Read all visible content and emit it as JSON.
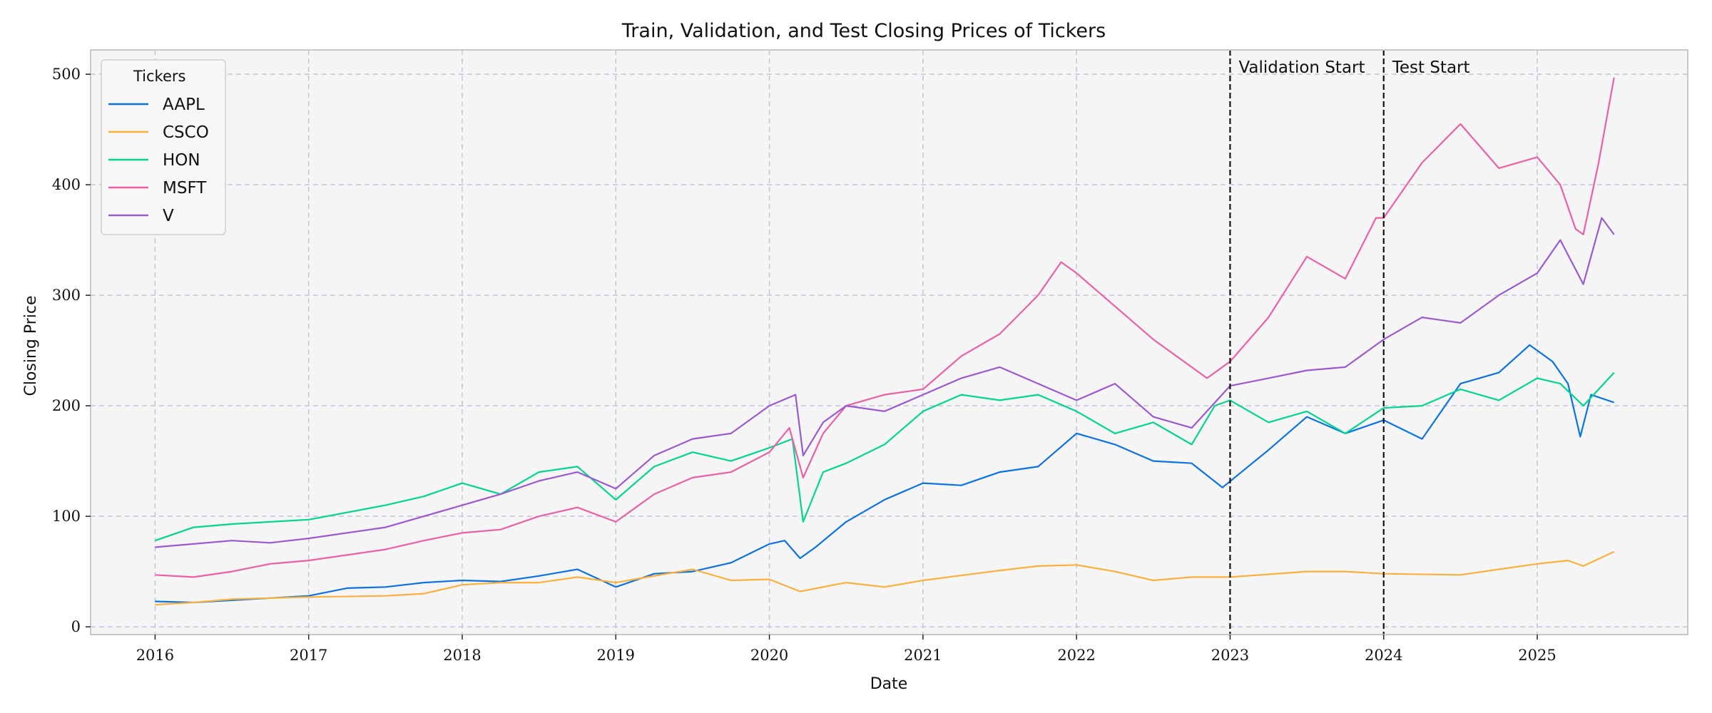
{
  "chart_data": {
    "type": "line",
    "title": "Train, Validation, and Test Closing Prices of Tickers",
    "xlabel": "Date",
    "ylabel": "Closing Price",
    "xlim": [
      2015.58,
      2025.98
    ],
    "ylim": [
      -7,
      522
    ],
    "x_ticks": [
      2016,
      2017,
      2018,
      2019,
      2020,
      2021,
      2022,
      2023,
      2024,
      2025
    ],
    "x_tick_labels": [
      "2016",
      "2017",
      "2018",
      "2019",
      "2020",
      "2021",
      "2022",
      "2023",
      "2024",
      "2025"
    ],
    "y_ticks": [
      0,
      100,
      200,
      300,
      400,
      500
    ],
    "y_tick_labels": [
      "0",
      "100",
      "200",
      "300",
      "400",
      "500"
    ],
    "grid": true,
    "legend": {
      "title": "Tickers",
      "placement": "top-left"
    },
    "annotations": [
      {
        "x": 2023.0,
        "label": "Validation Start"
      },
      {
        "x": 2024.0,
        "label": "Test Start"
      }
    ],
    "series": [
      {
        "name": "AAPL",
        "color": "#0b72e6",
        "points": [
          [
            2016.0,
            23
          ],
          [
            2016.25,
            22
          ],
          [
            2016.5,
            24
          ],
          [
            2016.75,
            26
          ],
          [
            2017.0,
            28
          ],
          [
            2017.25,
            35
          ],
          [
            2017.5,
            36
          ],
          [
            2017.75,
            40
          ],
          [
            2018.0,
            42
          ],
          [
            2018.25,
            41
          ],
          [
            2018.5,
            46
          ],
          [
            2018.75,
            52
          ],
          [
            2019.0,
            36
          ],
          [
            2019.25,
            48
          ],
          [
            2019.5,
            50
          ],
          [
            2019.75,
            58
          ],
          [
            2020.0,
            75
          ],
          [
            2020.1,
            78
          ],
          [
            2020.2,
            62
          ],
          [
            2020.3,
            72
          ],
          [
            2020.5,
            95
          ],
          [
            2020.75,
            115
          ],
          [
            2021.0,
            130
          ],
          [
            2021.25,
            128
          ],
          [
            2021.5,
            140
          ],
          [
            2021.75,
            145
          ],
          [
            2022.0,
            175
          ],
          [
            2022.25,
            165
          ],
          [
            2022.5,
            150
          ],
          [
            2022.75,
            148
          ],
          [
            2022.95,
            126
          ],
          [
            2023.25,
            160
          ],
          [
            2023.5,
            190
          ],
          [
            2023.75,
            175
          ],
          [
            2024.0,
            187
          ],
          [
            2024.25,
            170
          ],
          [
            2024.5,
            220
          ],
          [
            2024.75,
            230
          ],
          [
            2024.95,
            255
          ],
          [
            2025.1,
            240
          ],
          [
            2025.2,
            220
          ],
          [
            2025.28,
            172
          ],
          [
            2025.35,
            210
          ],
          [
            2025.5,
            203
          ]
        ]
      },
      {
        "name": "CSCO",
        "color": "#fbb03b",
        "points": [
          [
            2016.0,
            20
          ],
          [
            2016.25,
            22
          ],
          [
            2016.5,
            25
          ],
          [
            2016.75,
            26
          ],
          [
            2017.0,
            27
          ],
          [
            2017.5,
            28
          ],
          [
            2017.75,
            30
          ],
          [
            2018.0,
            38
          ],
          [
            2018.25,
            40
          ],
          [
            2018.5,
            40
          ],
          [
            2018.75,
            45
          ],
          [
            2019.0,
            40
          ],
          [
            2019.5,
            52
          ],
          [
            2019.75,
            42
          ],
          [
            2020.0,
            43
          ],
          [
            2020.2,
            32
          ],
          [
            2020.5,
            40
          ],
          [
            2020.75,
            36
          ],
          [
            2021.0,
            42
          ],
          [
            2021.5,
            51
          ],
          [
            2021.75,
            55
          ],
          [
            2022.0,
            56
          ],
          [
            2022.25,
            50
          ],
          [
            2022.5,
            42
          ],
          [
            2022.75,
            45
          ],
          [
            2023.0,
            45
          ],
          [
            2023.5,
            50
          ],
          [
            2023.75,
            50
          ],
          [
            2024.0,
            48
          ],
          [
            2024.5,
            47
          ],
          [
            2024.75,
            52
          ],
          [
            2025.0,
            57
          ],
          [
            2025.2,
            60
          ],
          [
            2025.3,
            55
          ],
          [
            2025.5,
            68
          ]
        ]
      },
      {
        "name": "HON",
        "color": "#00d68f",
        "points": [
          [
            2016.0,
            78
          ],
          [
            2016.25,
            90
          ],
          [
            2016.5,
            93
          ],
          [
            2016.75,
            95
          ],
          [
            2017.0,
            97
          ],
          [
            2017.5,
            110
          ],
          [
            2017.75,
            118
          ],
          [
            2018.0,
            130
          ],
          [
            2018.25,
            120
          ],
          [
            2018.5,
            140
          ],
          [
            2018.75,
            145
          ],
          [
            2019.0,
            115
          ],
          [
            2019.25,
            145
          ],
          [
            2019.5,
            158
          ],
          [
            2019.75,
            150
          ],
          [
            2020.0,
            162
          ],
          [
            2020.15,
            170
          ],
          [
            2020.22,
            95
          ],
          [
            2020.35,
            140
          ],
          [
            2020.5,
            148
          ],
          [
            2020.75,
            165
          ],
          [
            2021.0,
            195
          ],
          [
            2021.25,
            210
          ],
          [
            2021.5,
            205
          ],
          [
            2021.75,
            210
          ],
          [
            2022.0,
            195
          ],
          [
            2022.25,
            175
          ],
          [
            2022.5,
            185
          ],
          [
            2022.75,
            165
          ],
          [
            2022.9,
            200
          ],
          [
            2023.0,
            205
          ],
          [
            2023.25,
            185
          ],
          [
            2023.5,
            195
          ],
          [
            2023.75,
            175
          ],
          [
            2024.0,
            198
          ],
          [
            2024.25,
            200
          ],
          [
            2024.5,
            215
          ],
          [
            2024.75,
            205
          ],
          [
            2025.0,
            225
          ],
          [
            2025.15,
            220
          ],
          [
            2025.3,
            200
          ],
          [
            2025.5,
            230
          ]
        ]
      },
      {
        "name": "MSFT",
        "color": "#ec5fa5",
        "points": [
          [
            2016.0,
            47
          ],
          [
            2016.25,
            45
          ],
          [
            2016.5,
            50
          ],
          [
            2016.75,
            57
          ],
          [
            2017.0,
            60
          ],
          [
            2017.5,
            70
          ],
          [
            2017.75,
            78
          ],
          [
            2018.0,
            85
          ],
          [
            2018.25,
            88
          ],
          [
            2018.5,
            100
          ],
          [
            2018.75,
            108
          ],
          [
            2019.0,
            95
          ],
          [
            2019.25,
            120
          ],
          [
            2019.5,
            135
          ],
          [
            2019.75,
            140
          ],
          [
            2020.0,
            158
          ],
          [
            2020.13,
            180
          ],
          [
            2020.22,
            135
          ],
          [
            2020.35,
            175
          ],
          [
            2020.5,
            200
          ],
          [
            2020.75,
            210
          ],
          [
            2021.0,
            215
          ],
          [
            2021.25,
            245
          ],
          [
            2021.5,
            265
          ],
          [
            2021.75,
            300
          ],
          [
            2021.9,
            330
          ],
          [
            2022.0,
            320
          ],
          [
            2022.25,
            290
          ],
          [
            2022.5,
            260
          ],
          [
            2022.75,
            235
          ],
          [
            2022.85,
            225
          ],
          [
            2023.0,
            240
          ],
          [
            2023.25,
            280
          ],
          [
            2023.5,
            335
          ],
          [
            2023.75,
            315
          ],
          [
            2023.95,
            370
          ],
          [
            2024.0,
            370
          ],
          [
            2024.25,
            420
          ],
          [
            2024.5,
            455
          ],
          [
            2024.75,
            415
          ],
          [
            2025.0,
            425
          ],
          [
            2025.15,
            400
          ],
          [
            2025.25,
            360
          ],
          [
            2025.3,
            355
          ],
          [
            2025.4,
            420
          ],
          [
            2025.5,
            497
          ]
        ]
      },
      {
        "name": "V",
        "color": "#9b59d0",
        "points": [
          [
            2016.0,
            72
          ],
          [
            2016.25,
            75
          ],
          [
            2016.5,
            78
          ],
          [
            2016.75,
            76
          ],
          [
            2017.0,
            80
          ],
          [
            2017.5,
            90
          ],
          [
            2017.75,
            100
          ],
          [
            2018.0,
            110
          ],
          [
            2018.25,
            120
          ],
          [
            2018.5,
            132
          ],
          [
            2018.75,
            140
          ],
          [
            2019.0,
            125
          ],
          [
            2019.25,
            155
          ],
          [
            2019.5,
            170
          ],
          [
            2019.75,
            175
          ],
          [
            2020.0,
            200
          ],
          [
            2020.17,
            210
          ],
          [
            2020.22,
            155
          ],
          [
            2020.35,
            185
          ],
          [
            2020.5,
            200
          ],
          [
            2020.75,
            195
          ],
          [
            2021.0,
            210
          ],
          [
            2021.25,
            225
          ],
          [
            2021.5,
            235
          ],
          [
            2021.75,
            220
          ],
          [
            2022.0,
            205
          ],
          [
            2022.25,
            220
          ],
          [
            2022.5,
            190
          ],
          [
            2022.75,
            180
          ],
          [
            2023.0,
            218
          ],
          [
            2023.25,
            225
          ],
          [
            2023.5,
            232
          ],
          [
            2023.75,
            235
          ],
          [
            2024.0,
            260
          ],
          [
            2024.25,
            280
          ],
          [
            2024.5,
            275
          ],
          [
            2024.75,
            300
          ],
          [
            2025.0,
            320
          ],
          [
            2025.15,
            350
          ],
          [
            2025.3,
            310
          ],
          [
            2025.42,
            370
          ],
          [
            2025.5,
            355
          ]
        ]
      }
    ]
  }
}
